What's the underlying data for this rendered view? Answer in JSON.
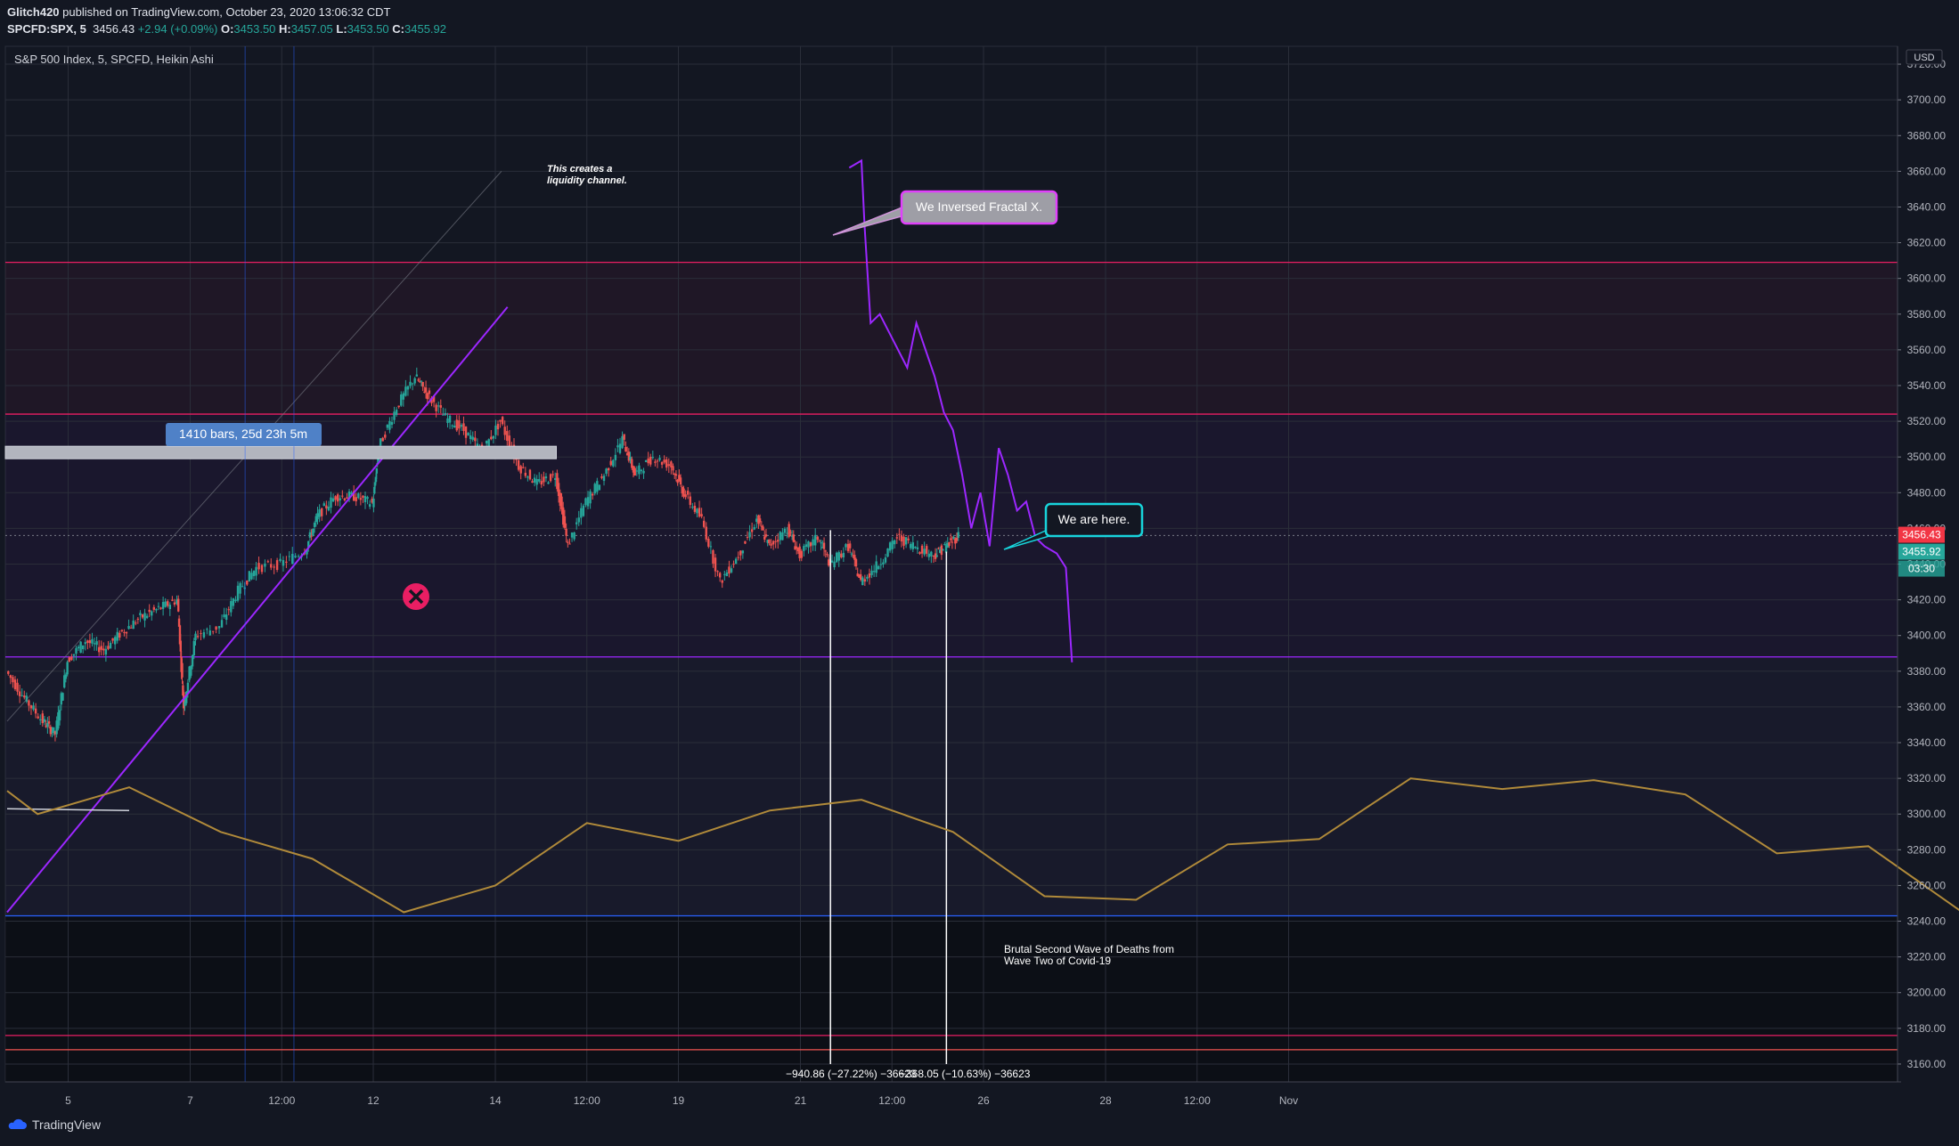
{
  "header": {
    "author": "Glitch420",
    "published": "published on TradingView.com, October 23, 2020 13:06:32 CDT",
    "symbol": "SPCFD:SPX, 5",
    "last": "3456.43",
    "change": "+2.94 (+0.09%)",
    "o_label": "O:",
    "o": "3453.50",
    "h_label": "H:",
    "h": "3457.05",
    "l_label": "L:",
    "l": "3453.50",
    "c_label": "C:",
    "c": "3455.92"
  },
  "chart_title": "S&P 500 Index, 5, SPCFD, Heikin Ashi",
  "footer": {
    "brand": "TradingView"
  },
  "colors": {
    "background": "#131722",
    "bull_candle": "#26a69a",
    "bear_candle": "#ef5350",
    "projection": "#9c27ff",
    "resistance_band": "#e91e63",
    "support_line": "#9c27ff",
    "indicator": "#b08a3a",
    "last_price_badge": "#f23645",
    "close_badge": "#26a69a"
  },
  "chart_data": {
    "type": "candlestick",
    "title": "S&P 500 Index, 5, SPCFD, Heikin Ashi",
    "currency": "USD",
    "ylim": [
      3150,
      3730
    ],
    "y_ticks": [
      "3720.00",
      "3700.00",
      "3680.00",
      "3660.00",
      "3640.00",
      "3620.00",
      "3600.00",
      "3580.00",
      "3560.00",
      "3540.00",
      "3520.00",
      "3500.00",
      "3480.00",
      "3460.00",
      "3440.00",
      "3420.00",
      "3400.00",
      "3380.00",
      "3360.00",
      "3340.00",
      "3320.00",
      "3300.00",
      "3280.00",
      "3260.00",
      "3240.00",
      "3220.00",
      "3200.00",
      "3180.00",
      "3160.00"
    ],
    "x_ticks": [
      "5",
      "7",
      "12:00",
      "12",
      "14",
      "12:00",
      "19",
      "21",
      "12:00",
      "26",
      "28",
      "12:00",
      "Nov"
    ],
    "x_tick_index": [
      1,
      3,
      4.5,
      6,
      8,
      9.5,
      11,
      13,
      14.5,
      16,
      18,
      19.5,
      21
    ],
    "price_series": [
      [
        0.0,
        3380
      ],
      [
        0.3,
        3365
      ],
      [
        0.6,
        3352
      ],
      [
        0.8,
        3345
      ],
      [
        1.0,
        3386
      ],
      [
        1.3,
        3397
      ],
      [
        1.6,
        3392
      ],
      [
        1.9,
        3402
      ],
      [
        2.2,
        3410
      ],
      [
        2.5,
        3415
      ],
      [
        2.8,
        3420
      ],
      [
        2.9,
        3360
      ],
      [
        3.1,
        3400
      ],
      [
        3.5,
        3405
      ],
      [
        3.8,
        3425
      ],
      [
        4.1,
        3438
      ],
      [
        4.5,
        3440
      ],
      [
        4.9,
        3448
      ],
      [
        5.1,
        3467
      ],
      [
        5.4,
        3478
      ],
      [
        5.7,
        3478
      ],
      [
        6.0,
        3474
      ],
      [
        6.1,
        3505
      ],
      [
        6.4,
        3528
      ],
      [
        6.7,
        3545
      ],
      [
        6.9,
        3535
      ],
      [
        7.2,
        3522
      ],
      [
        7.5,
        3515
      ],
      [
        7.8,
        3503
      ],
      [
        8.1,
        3520
      ],
      [
        8.4,
        3495
      ],
      [
        8.7,
        3485
      ],
      [
        9.0,
        3490
      ],
      [
        9.2,
        3450
      ],
      [
        9.5,
        3475
      ],
      [
        9.8,
        3490
      ],
      [
        10.1,
        3510
      ],
      [
        10.3,
        3490
      ],
      [
        10.6,
        3500
      ],
      [
        10.9,
        3495
      ],
      [
        11.1,
        3480
      ],
      [
        11.4,
        3465
      ],
      [
        11.7,
        3430
      ],
      [
        12.0,
        3445
      ],
      [
        12.3,
        3465
      ],
      [
        12.5,
        3450
      ],
      [
        12.8,
        3460
      ],
      [
        13.0,
        3445
      ],
      [
        13.3,
        3455
      ],
      [
        13.5,
        3440
      ],
      [
        13.8,
        3450
      ],
      [
        14.0,
        3430
      ],
      [
        14.3,
        3440
      ],
      [
        14.6,
        3455
      ],
      [
        14.9,
        3450
      ],
      [
        15.2,
        3445
      ],
      [
        15.4,
        3450
      ],
      [
        15.6,
        3456
      ]
    ],
    "projection_series": [
      [
        13.8,
        3662
      ],
      [
        14.0,
        3666
      ],
      [
        14.05,
        3630
      ],
      [
        14.15,
        3575
      ],
      [
        14.3,
        3580
      ],
      [
        14.45,
        3570
      ],
      [
        14.6,
        3560
      ],
      [
        14.75,
        3550
      ],
      [
        14.9,
        3575
      ],
      [
        15.05,
        3560
      ],
      [
        15.2,
        3545
      ],
      [
        15.35,
        3525
      ],
      [
        15.5,
        3515
      ],
      [
        15.65,
        3490
      ],
      [
        15.8,
        3460
      ],
      [
        15.95,
        3480
      ],
      [
        16.1,
        3450
      ],
      [
        16.25,
        3505
      ],
      [
        16.4,
        3490
      ],
      [
        16.55,
        3470
      ],
      [
        16.7,
        3475
      ],
      [
        16.85,
        3455
      ],
      [
        17.0,
        3450
      ],
      [
        17.2,
        3446
      ],
      [
        17.35,
        3438
      ],
      [
        17.45,
        3385
      ]
    ],
    "indicator_series": [
      [
        0,
        3313
      ],
      [
        0.5,
        3300
      ],
      [
        2.0,
        3315
      ],
      [
        3.5,
        3290
      ],
      [
        5.0,
        3275
      ],
      [
        6.5,
        3245
      ],
      [
        8.0,
        3260
      ],
      [
        9.5,
        3295
      ],
      [
        11.0,
        3285
      ],
      [
        12.5,
        3302
      ],
      [
        14.0,
        3308
      ],
      [
        15.5,
        3290
      ],
      [
        17.0,
        3254
      ],
      [
        18.5,
        3252
      ],
      [
        20.0,
        3283
      ],
      [
        21.5,
        3286
      ],
      [
        23.0,
        3320
      ],
      [
        24.5,
        3314
      ],
      [
        26.0,
        3319
      ],
      [
        27.5,
        3311
      ],
      [
        29.0,
        3278
      ],
      [
        30.5,
        3282
      ],
      [
        32.0,
        3246
      ]
    ],
    "horizontal_levels": [
      3609,
      3524,
      3388,
      3243,
      3176,
      3168
    ],
    "last_price": "3456.43",
    "close_price": "3455.92",
    "countdown": "03:30",
    "annotations": {
      "channel_note": "This creates a liquidity channel.",
      "fractal_label": "We Inversed Fractal X.",
      "here_label": "We are here.",
      "bars_label": "1410 bars, 25d 23h 5m",
      "deaths_note": "Brutal Second Wave of Deaths from Wave Two of Covid-19",
      "measure_label": "−940.86 (−27.22%) −36623",
      "measure_label2": "−368.05 (−10.63%) −36623"
    }
  }
}
